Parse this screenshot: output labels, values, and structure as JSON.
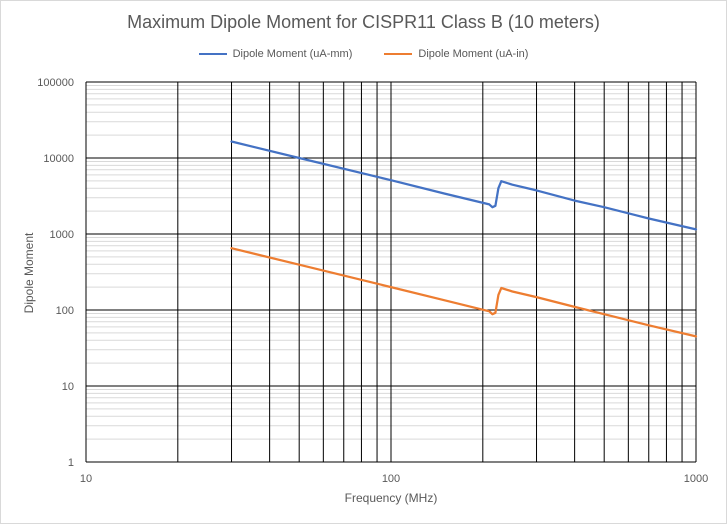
{
  "chart_data": {
    "type": "line",
    "title": "Maximum Dipole Moment for CISPR11 Class B (10 meters)",
    "xlabel": "Frequency (MHz)",
    "ylabel": "Dipole Moment",
    "x_scale": "log",
    "y_scale": "log",
    "xlim": [
      10,
      1000
    ],
    "ylim": [
      1,
      100000
    ],
    "x_ticks": [
      "10",
      "100",
      "1000"
    ],
    "y_ticks": [
      "1",
      "10",
      "100",
      "1000",
      "10000",
      "100000"
    ],
    "grid": true,
    "legend_position": "top",
    "series": [
      {
        "name": "Dipole Moment (uA-mm)",
        "color": "#4472c4",
        "x": [
          30,
          50,
          100,
          150,
          210,
          215,
          220,
          225,
          230,
          250,
          300,
          400,
          500,
          700,
          1000
        ],
        "y": [
          16500,
          10000,
          5100,
          3400,
          2450,
          2250,
          2350,
          4000,
          4950,
          4450,
          3750,
          2750,
          2250,
          1600,
          1150
        ]
      },
      {
        "name": "Dipole Moment (uA-in)",
        "color": "#ed7d31",
        "x": [
          30,
          50,
          100,
          150,
          210,
          215,
          220,
          225,
          230,
          250,
          300,
          400,
          500,
          700,
          1000
        ],
        "y": [
          650,
          395,
          200,
          134,
          96,
          88,
          92,
          158,
          195,
          175,
          148,
          110,
          88,
          63,
          45
        ]
      }
    ]
  }
}
